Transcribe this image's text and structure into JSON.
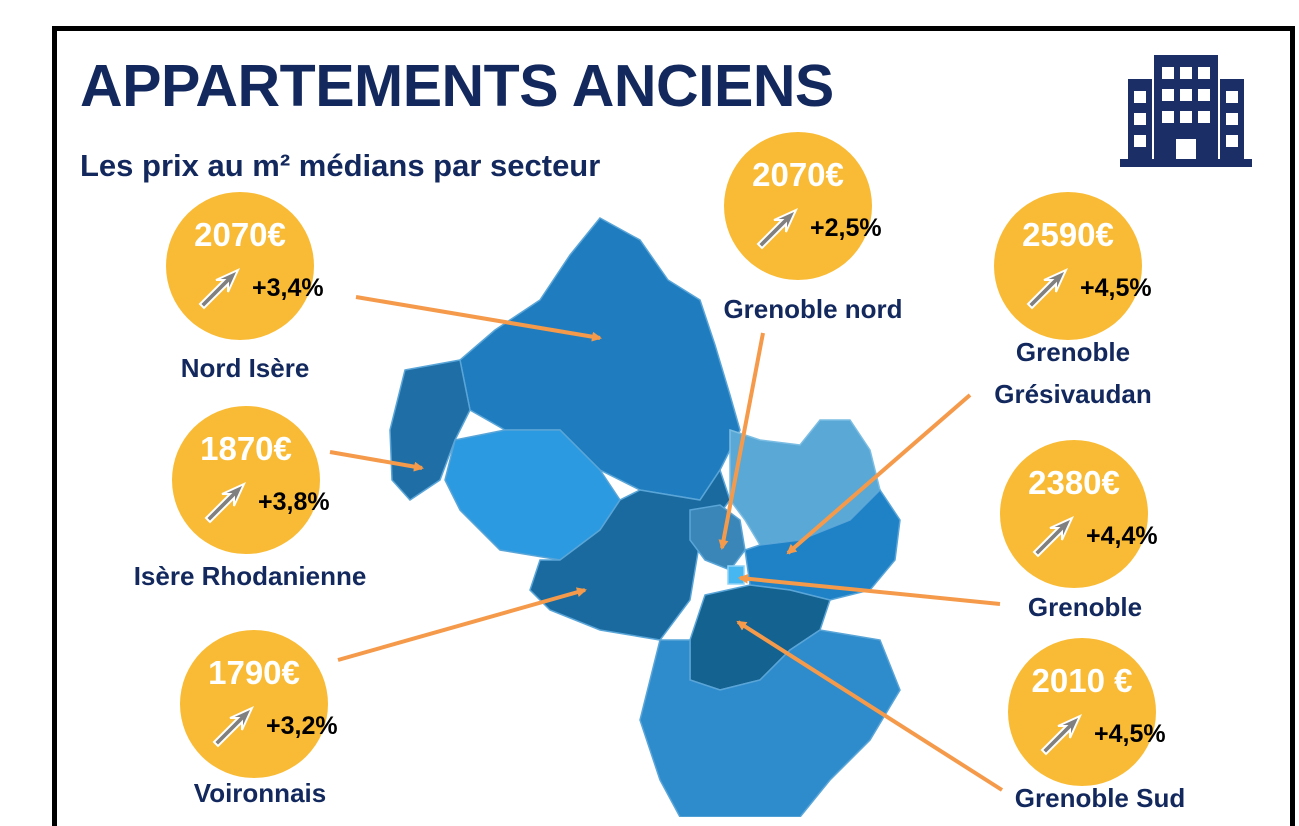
{
  "header": {
    "title": "APPARTEMENTS ANCIENS",
    "subtitle": "Les prix au m² médians par secteur",
    "icon": "building-icon"
  },
  "colors": {
    "title": "#13295e",
    "bubble": "#f9bb35",
    "arrow": "#f59a4a",
    "map_dark": "#1f6fa6",
    "map_mid": "#2f8ccc",
    "map_light": "#3fa3e0"
  },
  "sectors": [
    {
      "id": "nord-isere",
      "name": "Nord Isère",
      "price": "2070€",
      "change": "+3,4%",
      "trend": "up"
    },
    {
      "id": "isere-rhodanienne",
      "name": "Isère Rhodanienne",
      "price": "1870€",
      "change": "+3,8%",
      "trend": "up"
    },
    {
      "id": "voironnais",
      "name": "Voironnais",
      "price": "1790€",
      "change": "+3,2%",
      "trend": "up"
    },
    {
      "id": "grenoble-nord",
      "name": "Grenoble nord",
      "price": "2070€",
      "change": "+2,5%",
      "trend": "up"
    },
    {
      "id": "grenoble-gresivaudan",
      "name_line1": "Grenoble",
      "name_line2": "Grésivaudan",
      "price": "2590€",
      "change": "+4,5%",
      "trend": "up"
    },
    {
      "id": "grenoble",
      "name": "Grenoble",
      "price": "2380€",
      "change": "+4,4%",
      "trend": "up"
    },
    {
      "id": "grenoble-sud",
      "name": "Grenoble Sud",
      "price": "2010 €",
      "change": "+4,5%",
      "trend": "up"
    }
  ]
}
